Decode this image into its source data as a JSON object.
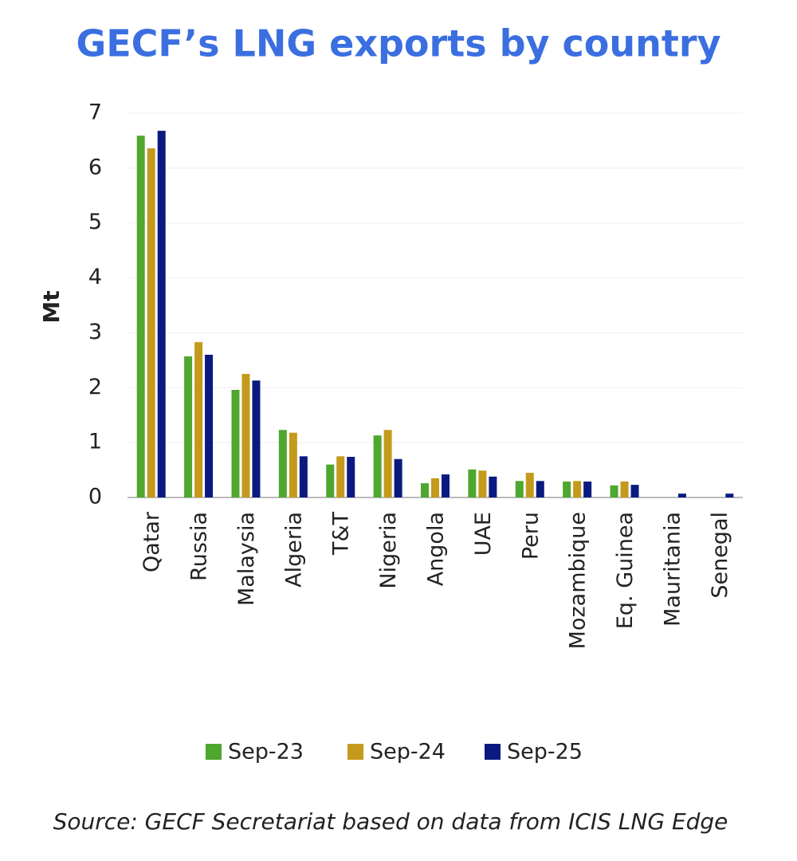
{
  "chart_data": {
    "type": "bar",
    "title": "GECF’s LNG exports by country",
    "y_label": "Mt",
    "source": "Source: GECF Secretariat based on data from ICIS LNG Edge",
    "categories": [
      "Qatar",
      "Russia",
      "Malaysia",
      "Algeria",
      "T&T",
      "Nigeria",
      "Angola",
      "UAE",
      "Peru",
      "Mozambique",
      "Eq. Guinea",
      "Mauritania",
      "Senegal"
    ],
    "series": [
      {
        "name": "Sep-23",
        "color": "#4ea72e",
        "values": [
          6.59,
          2.57,
          1.96,
          1.23,
          0.6,
          1.13,
          0.26,
          0.51,
          0.3,
          0.29,
          0.22,
          null,
          null
        ]
      },
      {
        "name": "Sep-24",
        "color": "#c49a1c",
        "values": [
          6.36,
          2.83,
          2.25,
          1.18,
          0.75,
          1.23,
          0.35,
          0.49,
          0.45,
          0.3,
          0.29,
          null,
          null
        ]
      },
      {
        "name": "Sep-25",
        "color": "#0b1a80",
        "values": [
          6.68,
          2.6,
          2.13,
          0.75,
          0.74,
          0.7,
          0.42,
          0.38,
          0.3,
          0.29,
          0.23,
          0.07,
          0.07
        ]
      }
    ],
    "ylim": [
      0,
      7
    ],
    "yticks": [
      0,
      1,
      2,
      3,
      4,
      5,
      6,
      7
    ],
    "grid": true
  }
}
